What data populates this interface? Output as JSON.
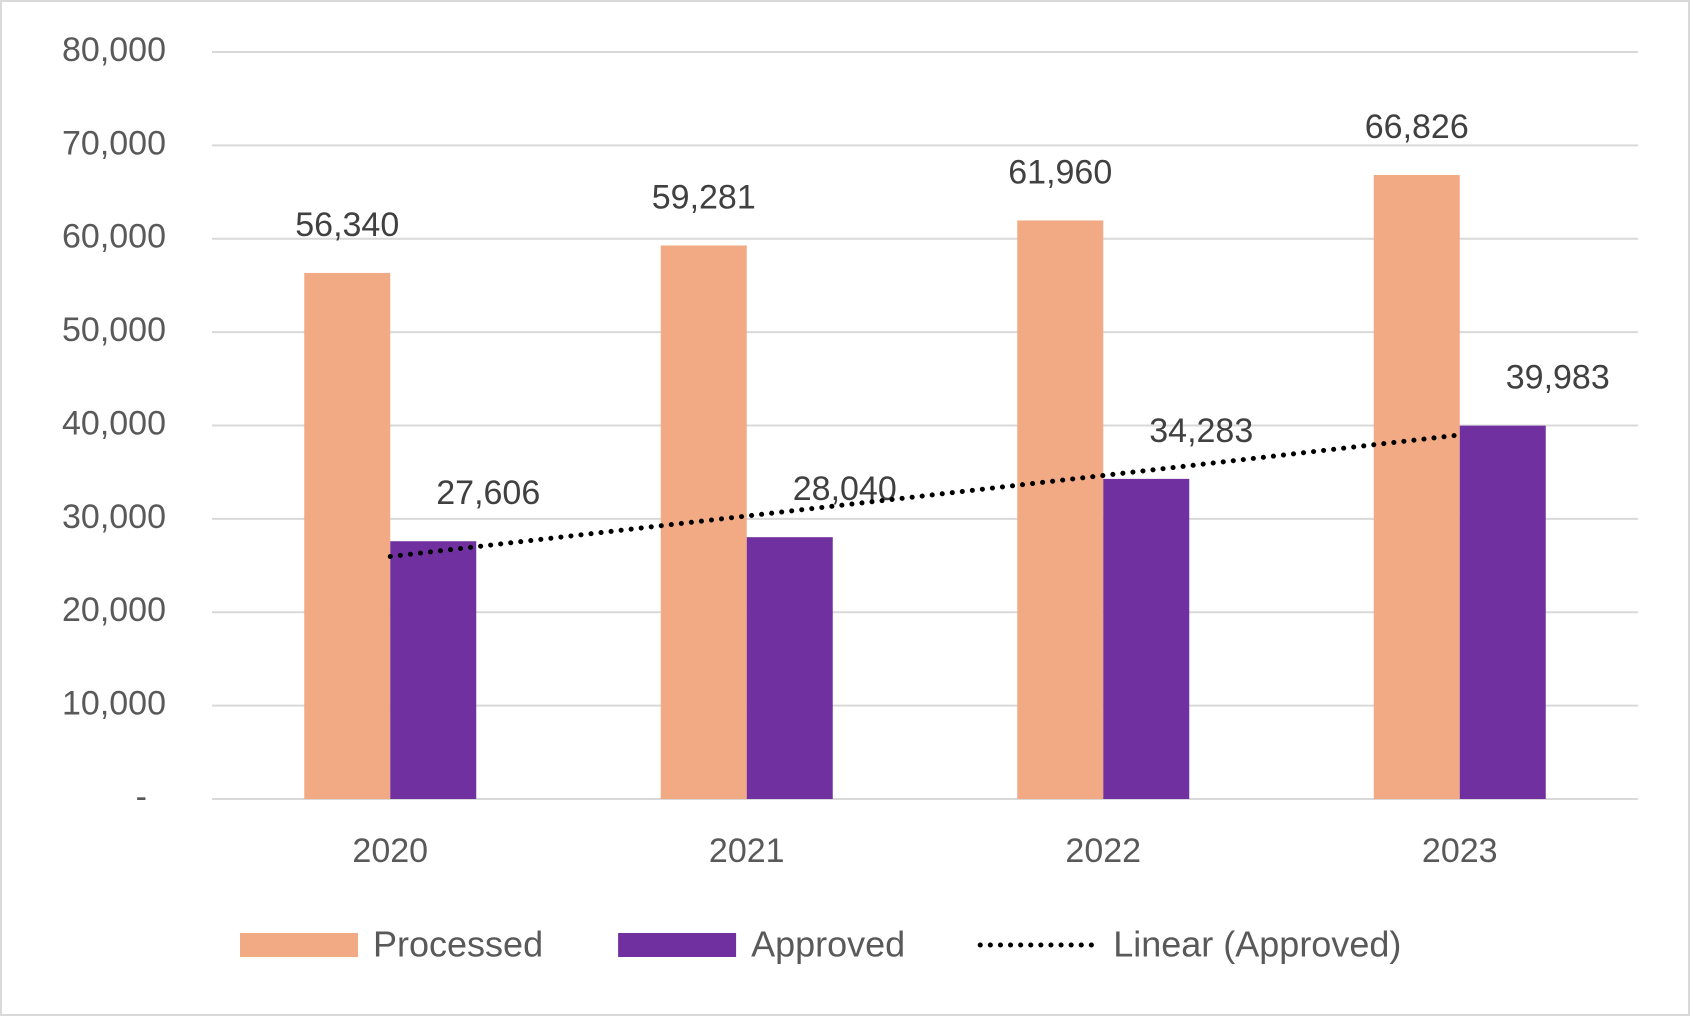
{
  "chart_data": {
    "type": "bar",
    "categories": [
      "2020",
      "2021",
      "2022",
      "2023"
    ],
    "series": [
      {
        "name": "Processed",
        "color": "#f2aa84",
        "values": [
          56340,
          59281,
          61960,
          66826
        ],
        "value_labels": [
          "56,340",
          "59,281",
          "61,960",
          "66,826"
        ]
      },
      {
        "name": "Approved",
        "color": "#7030a0",
        "values": [
          27606,
          28040,
          34283,
          39983
        ],
        "value_labels": [
          "27,606",
          "28,040",
          "34,283",
          "39,983"
        ],
        "trendline": {
          "name": "Linear (Approved)",
          "type": "linear",
          "color": "#000000"
        }
      }
    ],
    "ylim": [
      0,
      80000
    ],
    "yticks": [
      {
        "value": 0,
        "label": "-"
      },
      {
        "value": 10000,
        "label": "10,000"
      },
      {
        "value": 20000,
        "label": "20,000"
      },
      {
        "value": 30000,
        "label": "30,000"
      },
      {
        "value": 40000,
        "label": "40,000"
      },
      {
        "value": 50000,
        "label": "50,000"
      },
      {
        "value": 60000,
        "label": "60,000"
      },
      {
        "value": 70000,
        "label": "70,000"
      },
      {
        "value": 80000,
        "label": "80,000"
      }
    ],
    "grid": true,
    "legend": "bottom"
  }
}
